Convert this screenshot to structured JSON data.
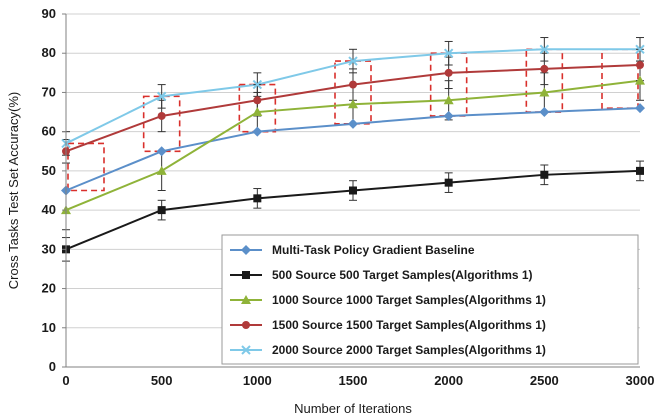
{
  "chart_data": {
    "type": "line",
    "title": "",
    "xlabel": "Number of  Iterations",
    "ylabel": "Cross Tasks  Test Set Accuracy(%)",
    "x": [
      0,
      500,
      1000,
      1500,
      2000,
      2500,
      3000
    ],
    "xlim": [
      0,
      3000
    ],
    "ylim": [
      0,
      90
    ],
    "xticks": [
      0,
      500,
      1000,
      1500,
      2000,
      2500,
      3000
    ],
    "yticks": [
      0,
      10,
      20,
      30,
      40,
      50,
      60,
      70,
      80,
      90
    ],
    "grid": true,
    "legend_position": "bottom-right",
    "series": [
      {
        "name": "Multi-Task Policy  Gradient Baseline",
        "color": "#5b8fc9",
        "marker": "diamond",
        "values": [
          45,
          55,
          60,
          62,
          64,
          65,
          66
        ],
        "error": [
          0,
          0,
          0,
          0,
          0,
          0,
          0
        ]
      },
      {
        "name": "500 Source 500 Target Samples(Algorithms 1)",
        "color": "#1a1a1a",
        "marker": "square",
        "values": [
          30,
          40,
          43,
          45,
          47,
          49,
          50
        ],
        "error": [
          3,
          2.5,
          2.5,
          2.5,
          2.5,
          2.5,
          2.5
        ]
      },
      {
        "name": "1000 Source 1000 Target Samples(Algorithms 1)",
        "color": "#8fb339",
        "marker": "triangle",
        "values": [
          40,
          50,
          65,
          67,
          68,
          70,
          73
        ],
        "error": [
          5,
          5,
          5,
          5,
          5,
          5,
          5
        ]
      },
      {
        "name": "1500 Source 1500 Target Samples(Algorithms 1)",
        "color": "#b03a3a",
        "marker": "circle",
        "values": [
          55,
          64,
          68,
          72,
          75,
          76,
          77
        ],
        "error": [
          3,
          4,
          4,
          4,
          4,
          4,
          4
        ]
      },
      {
        "name": "2000 Source 2000 Target Samples(Algorithms 1)",
        "color": "#7fc9e8",
        "marker": "cross",
        "values": [
          57,
          69,
          72,
          78,
          80,
          81,
          81
        ],
        "error": [
          3,
          3,
          3,
          3,
          3,
          3,
          3
        ]
      }
    ],
    "highlight_boxes": [
      {
        "x": 0,
        "ymin": 45,
        "ymax": 57
      },
      {
        "x": 500,
        "ymin": 55,
        "ymax": 69
      },
      {
        "x": 1000,
        "ymin": 60,
        "ymax": 72
      },
      {
        "x": 1500,
        "ymin": 62,
        "ymax": 78
      },
      {
        "x": 2000,
        "ymin": 64,
        "ymax": 80
      },
      {
        "x": 2500,
        "ymin": 65,
        "ymax": 81
      },
      {
        "x": 3000,
        "ymin": 66,
        "ymax": 81
      }
    ],
    "highlight_color": "#d9302c"
  }
}
